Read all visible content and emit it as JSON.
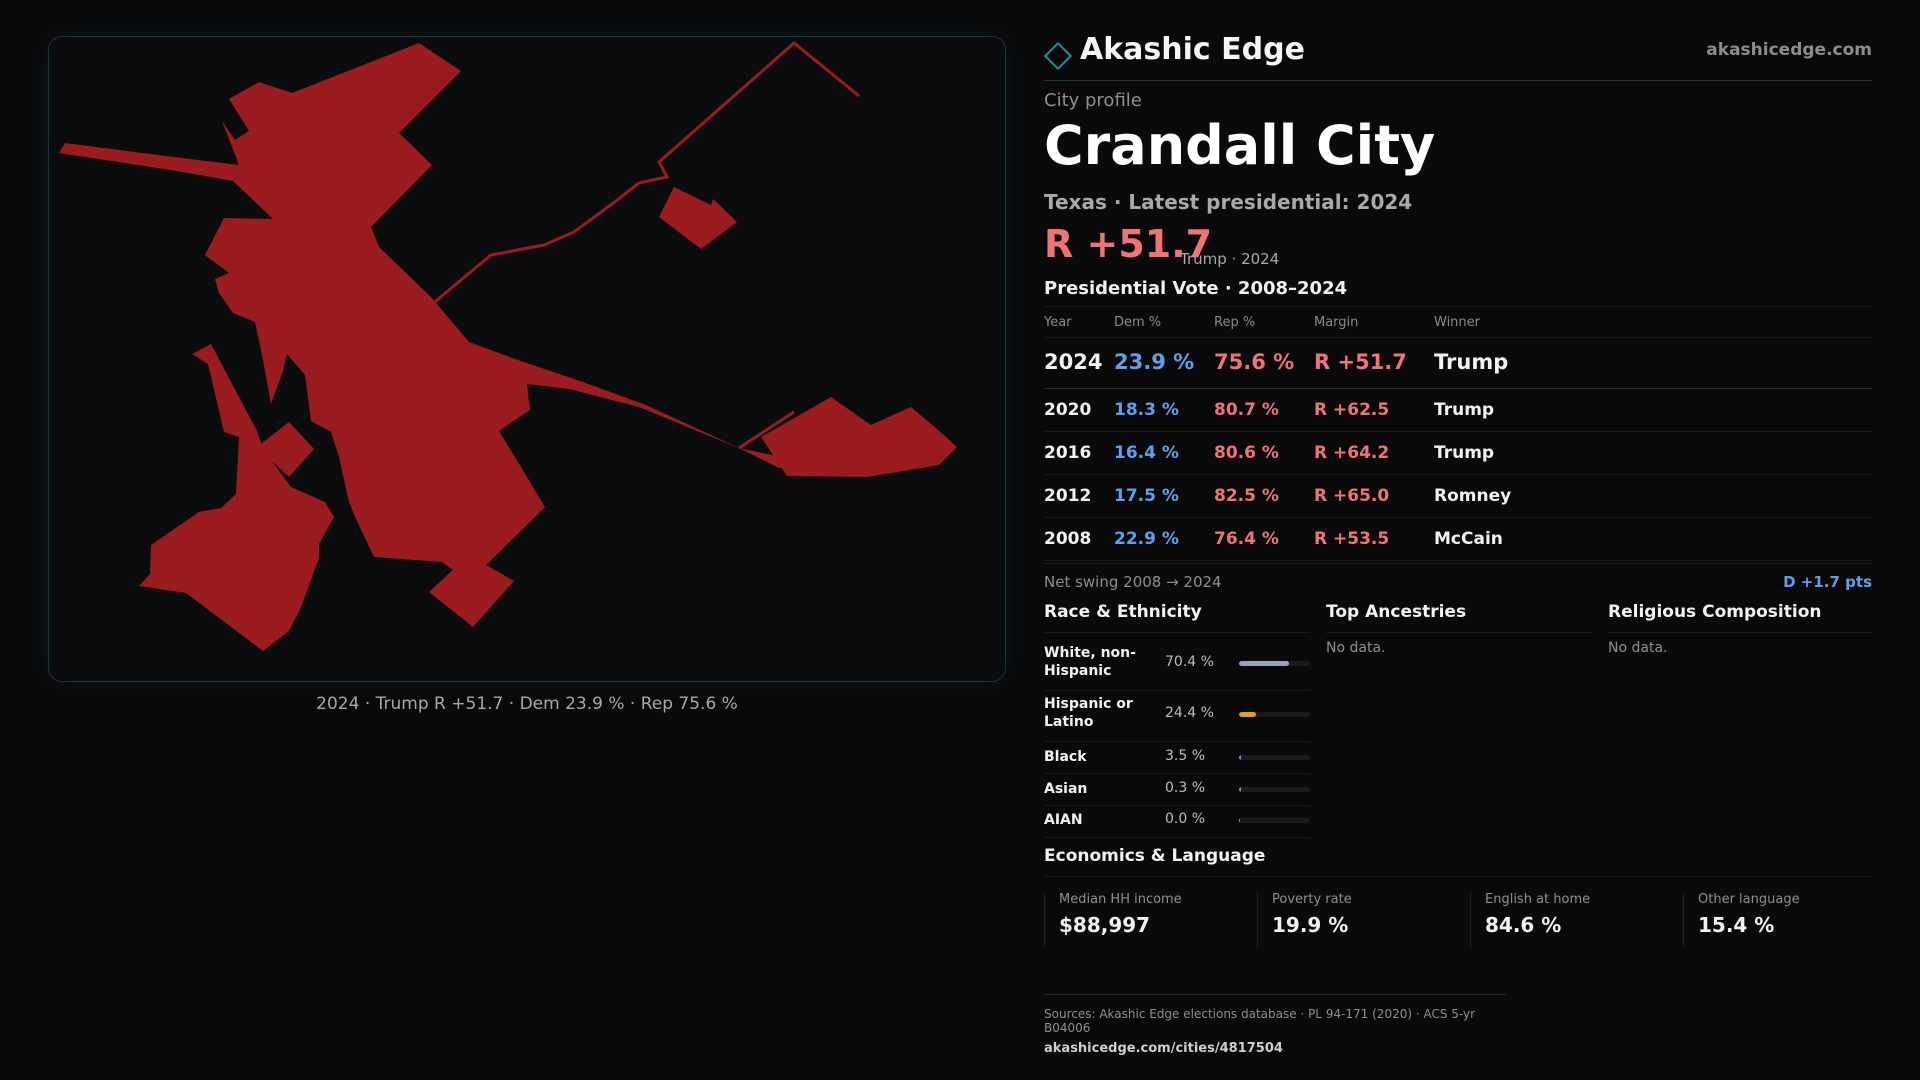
{
  "map": {
    "caption": "2024 · Trump R +51.7 · Dem 23.9 % · Rep 75.6 %",
    "fill_color": "#9b1c1f"
  },
  "header": {
    "brand": "Akashic Edge",
    "site": "akashicedge.com",
    "logo_icon": "diamond-icon"
  },
  "profile": {
    "kicker": "City profile",
    "city": "Crandall City",
    "state": "Texas",
    "latest_label": "Latest presidential: 2024",
    "margin": "R +51.7",
    "margin_note": "Trump · 2024"
  },
  "vote": {
    "title": "Presidential Vote · 2008–2024",
    "headers": {
      "year": "Year",
      "dem": "Dem %",
      "rep": "Rep %",
      "margin": "Margin",
      "winner": "Winner"
    },
    "rows": [
      {
        "year": "2024",
        "dem": "23.9 %",
        "rep": "75.6 %",
        "margin": "R +51.7",
        "winner": "Trump"
      },
      {
        "year": "2020",
        "dem": "18.3 %",
        "rep": "80.7 %",
        "margin": "R +62.5",
        "winner": "Trump"
      },
      {
        "year": "2016",
        "dem": "16.4 %",
        "rep": "80.6 %",
        "margin": "R +64.2",
        "winner": "Trump"
      },
      {
        "year": "2012",
        "dem": "17.5 %",
        "rep": "82.5 %",
        "margin": "R +65.0",
        "winner": "Romney"
      },
      {
        "year": "2008",
        "dem": "22.9 %",
        "rep": "76.4 %",
        "margin": "R +53.5",
        "winner": "McCain"
      }
    ],
    "swing_label": "Net swing 2008 → 2024",
    "swing_value": "D +1.7 pts"
  },
  "race": {
    "title": "Race & Ethnicity",
    "rows": [
      {
        "label_line1": "White, non-",
        "label_line2": "Hispanic",
        "pct": "70.4 %",
        "value": 70.4,
        "color": "#9aa3b5"
      },
      {
        "label_line1": "Hispanic or",
        "label_line2": "Latino",
        "pct": "24.4 %",
        "value": 24.4,
        "color": "#e0a020"
      },
      {
        "label_line1": "Black",
        "label_line2": "",
        "pct": "3.5 %",
        "value": 3.5,
        "color": "#8a7be8"
      },
      {
        "label_line1": "Asian",
        "label_line2": "",
        "pct": "0.3 %",
        "value": 0.3,
        "color": "#4fb0c0"
      },
      {
        "label_line1": "AIAN",
        "label_line2": "",
        "pct": "0.0 %",
        "value": 0.0,
        "color": "#60c080"
      }
    ]
  },
  "ancestries": {
    "title": "Top Ancestries",
    "empty": "No data."
  },
  "religion": {
    "title": "Religious Composition",
    "empty": "No data."
  },
  "economics": {
    "title": "Economics & Language",
    "items": [
      {
        "label": "Median HH income",
        "value": "$88,997"
      },
      {
        "label": "Poverty rate",
        "value": "19.9 %"
      },
      {
        "label": "English at home",
        "value": "84.6 %"
      },
      {
        "label": "Other language",
        "value": "15.4 %"
      }
    ]
  },
  "footer": {
    "sources": "Sources: Akashic Edge elections database · PL 94-171 (2020) · ACS 5-yr B04006",
    "url": "akashicedge.com/cities/4817504"
  }
}
